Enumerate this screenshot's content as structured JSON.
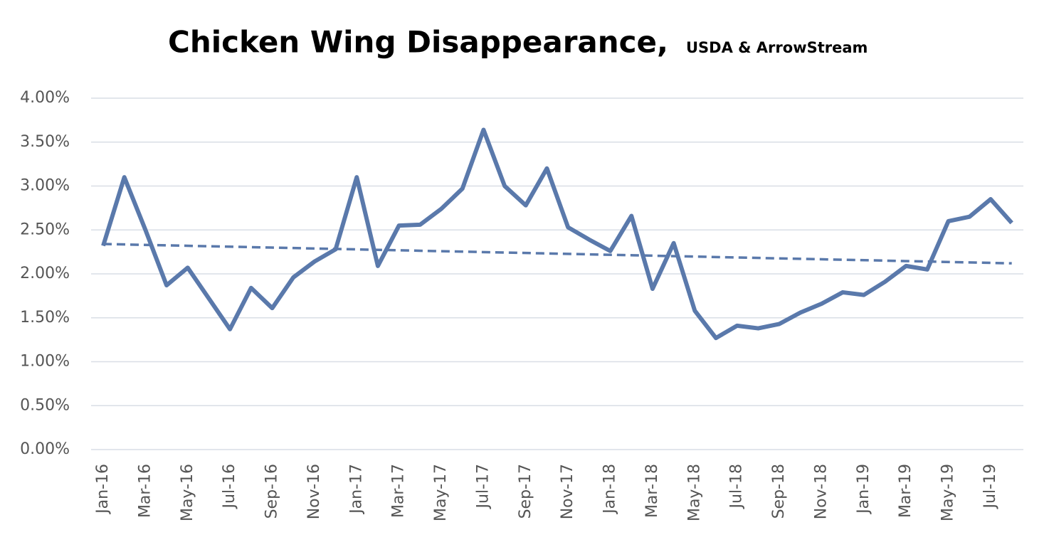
{
  "chart_data": {
    "type": "line",
    "title": "Chicken Wing Disappearance,",
    "subtitle": "USDA & ArrowStream",
    "categories": [
      "Jan-16",
      null,
      "Mar-16",
      null,
      "May-16",
      null,
      "Jul-16",
      null,
      "Sep-16",
      null,
      "Nov-16",
      null,
      "Jan-17",
      null,
      "Mar-17",
      null,
      "May-17",
      null,
      "Jul-17",
      null,
      "Sep-17",
      null,
      "Nov-17",
      null,
      "Jan-18",
      null,
      "Mar-18",
      null,
      "May-18",
      null,
      "Jul-18",
      null,
      "Sep-18",
      null,
      "Nov-18",
      null,
      "Jan-19",
      null,
      "Mar-19",
      null,
      "May-19",
      null,
      "Jul-19",
      null
    ],
    "series": [
      {
        "name": "Chicken Wing Disappearance",
        "color": "#5a79ab",
        "values": [
          2.32,
          3.1,
          2.5,
          1.87,
          2.07,
          1.72,
          1.37,
          1.84,
          1.61,
          1.96,
          2.14,
          2.28,
          3.1,
          2.09,
          2.55,
          2.56,
          2.74,
          2.97,
          3.64,
          3.0,
          2.78,
          3.2,
          2.53,
          2.39,
          2.26,
          2.66,
          1.83,
          2.35,
          1.58,
          1.27,
          1.41,
          1.38,
          1.43,
          1.56,
          1.66,
          1.79,
          1.76,
          1.91,
          2.09,
          2.05,
          2.6,
          2.65,
          2.85,
          2.58
        ]
      }
    ],
    "trendline": {
      "style": "dashed",
      "values": [
        2.34,
        2.12
      ]
    },
    "ylim": [
      0,
      4
    ],
    "yticks": [
      {
        "value": 0,
        "label": "0.00%"
      },
      {
        "value": 0.5,
        "label": "0.50%"
      },
      {
        "value": 1,
        "label": "1.00%"
      },
      {
        "value": 1.5,
        "label": "1.50%"
      },
      {
        "value": 2,
        "label": "2.00%"
      },
      {
        "value": 2.5,
        "label": "2.50%"
      },
      {
        "value": 3,
        "label": "3.00%"
      },
      {
        "value": 3.5,
        "label": "3.50%"
      },
      {
        "value": 4,
        "label": "4.00%"
      }
    ],
    "grid": true
  }
}
